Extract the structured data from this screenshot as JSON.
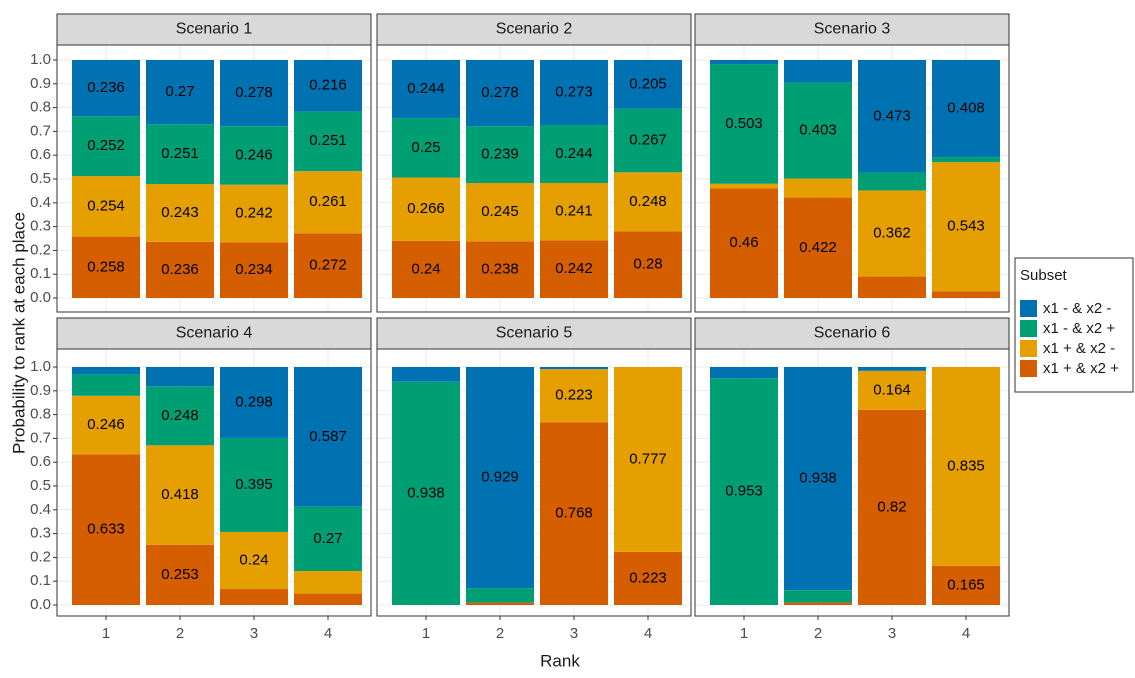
{
  "chart_data": {
    "type": "bar",
    "stacked": true,
    "x_label": "Rank",
    "y_label": "Probability to rank at each place",
    "legend_title": "Subset",
    "categories": [
      "1",
      "2",
      "3",
      "4"
    ],
    "ylim": [
      0,
      1
    ],
    "yticks": [
      {
        "value": 0,
        "label": "0.0"
      },
      0.1,
      0.2,
      0.3,
      0.4,
      0.5,
      0.6,
      0.7,
      0.8,
      0.9,
      {
        "value": 1,
        "label": "1.0"
      }
    ],
    "grid": true,
    "series": [
      {
        "name": "x1 - & x2 -",
        "color": "#0072B2"
      },
      {
        "name": "x1 - & x2 +",
        "color": "#009E73"
      },
      {
        "name": "x1 + & x2 -",
        "color": "#E69F00"
      },
      {
        "name": "x1 + & x2 +",
        "color": "#D55E00"
      }
    ],
    "facets": [
      {
        "title": "Scenario 1",
        "values": [
          [
            0.236,
            0.27,
            0.278,
            0.216
          ],
          [
            0.252,
            0.251,
            0.246,
            0.251
          ],
          [
            0.254,
            0.243,
            0.242,
            0.261
          ],
          [
            0.258,
            0.236,
            0.234,
            0.272
          ]
        ]
      },
      {
        "title": "Scenario 2",
        "values": [
          [
            0.244,
            0.278,
            0.273,
            0.205
          ],
          [
            0.25,
            0.239,
            0.244,
            0.267
          ],
          [
            0.266,
            0.245,
            0.241,
            0.248
          ],
          [
            0.24,
            0.238,
            0.242,
            0.28
          ]
        ]
      },
      {
        "title": "Scenario 3",
        "values": [
          [
            0.017,
            0.095,
            0.473,
            0.408
          ],
          [
            0.503,
            0.403,
            0.075,
            0.021
          ],
          [
            0.02,
            0.08,
            0.362,
            0.543
          ],
          [
            0.46,
            0.422,
            0.09,
            0.028
          ]
        ]
      },
      {
        "title": "Scenario 4",
        "values": [
          [
            0.031,
            0.081,
            0.298,
            0.587
          ],
          [
            0.09,
            0.248,
            0.395,
            0.27
          ],
          [
            0.246,
            0.418,
            0.24,
            0.095
          ],
          [
            0.633,
            0.253,
            0.067,
            0.048
          ]
        ]
      },
      {
        "title": "Scenario 5",
        "values": [
          [
            0.062,
            0.929,
            0.009,
            0
          ],
          [
            0.938,
            0.061,
            0,
            0
          ],
          [
            0,
            0,
            0.223,
            0.777
          ],
          [
            0,
            0.01,
            0.768,
            0.223
          ]
        ]
      },
      {
        "title": "Scenario 6",
        "values": [
          [
            0.047,
            0.938,
            0.016,
            0
          ],
          [
            0.953,
            0.052,
            0,
            0
          ],
          [
            0,
            0,
            0.164,
            0.835
          ],
          [
            0,
            0.01,
            0.82,
            0.165
          ]
        ]
      }
    ]
  }
}
